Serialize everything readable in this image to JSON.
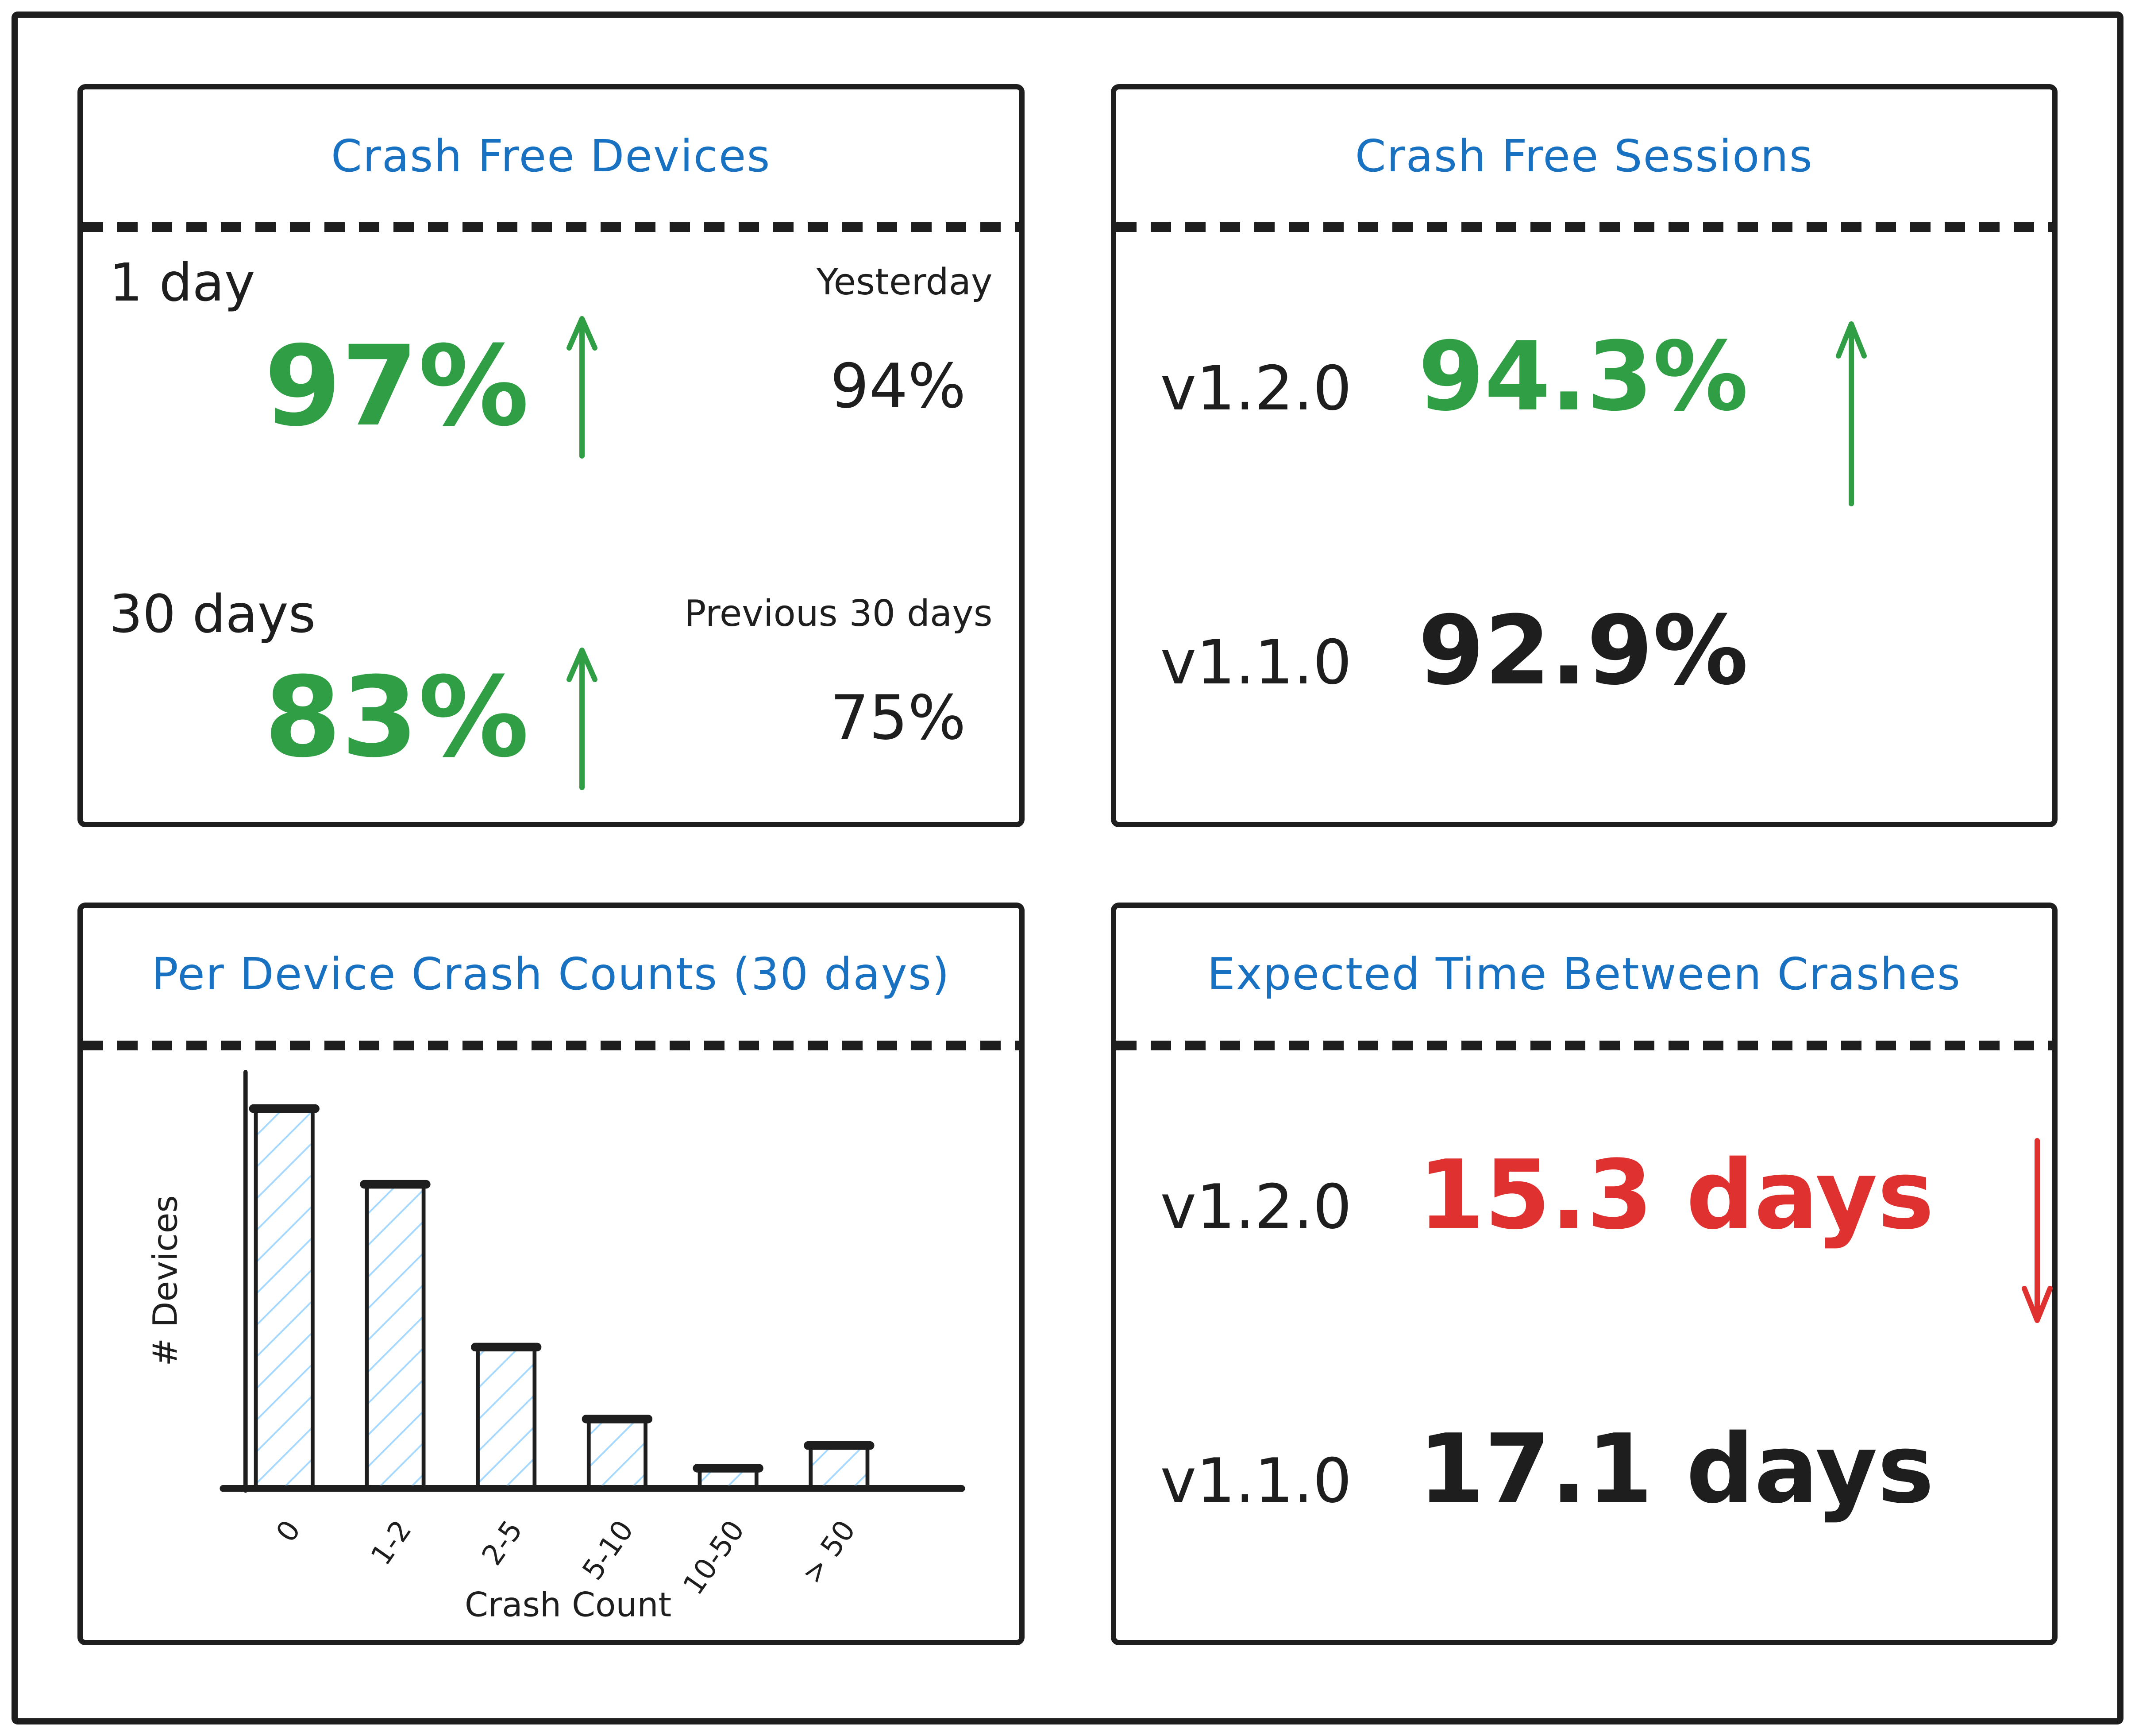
{
  "colors": {
    "title_blue": "#1971c2",
    "positive_green": "#2f9e44",
    "negative_red": "#e03131",
    "ink": "#1e1e1e",
    "bar_hatch_blue": "#a5d8ff"
  },
  "panels": {
    "crash_free_devices": {
      "title": "Crash Free Devices",
      "metrics": [
        {
          "period": "1 day",
          "compare_label": "Yesterday",
          "value": "97%",
          "trend": "up",
          "compare_value": "94%"
        },
        {
          "period": "30 days",
          "compare_label": "Previous 30 days",
          "value": "83%",
          "trend": "up",
          "compare_value": "75%"
        }
      ]
    },
    "crash_free_sessions": {
      "title": "Crash Free Sessions",
      "rows": [
        {
          "version": "v1.2.0",
          "value": "94.3%",
          "trend": "up"
        },
        {
          "version": "v1.1.0",
          "value": "92.9%",
          "trend": ""
        }
      ]
    },
    "per_device_crash_counts": {
      "title": "Per Device Crash Counts (30 days)"
    },
    "expected_time_between_crashes": {
      "title": "Expected Time Between Crashes",
      "rows": [
        {
          "version": "v1.2.0",
          "value": "15.3 days",
          "trend": "down"
        },
        {
          "version": "v1.1.0",
          "value": "17.1 days",
          "trend": ""
        }
      ]
    }
  },
  "chart_data": {
    "type": "bar",
    "title": "Per Device Crash Counts (30 days)",
    "categories": [
      "0",
      "1-2",
      "2-5",
      "5-10",
      "10-50",
      "> 50"
    ],
    "values": [
      100,
      80,
      37,
      18,
      5,
      11
    ],
    "values_unit": "relative bar height (no numeric y-axis labels shown)",
    "xlabel": "Crash Count",
    "ylabel": "# Devices",
    "ylim": [
      0,
      100
    ],
    "grid": false,
    "legend": false
  }
}
